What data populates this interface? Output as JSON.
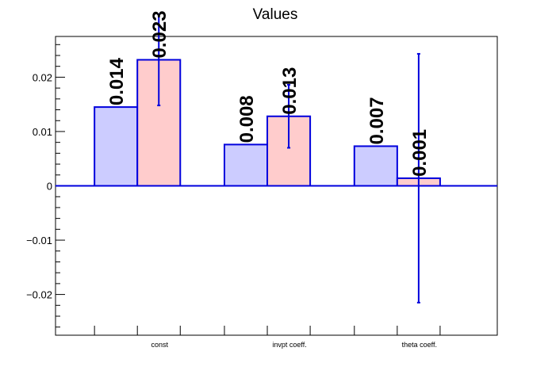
{
  "chart_data": {
    "type": "bar",
    "title": "Values",
    "xlabel": "",
    "ylabel": "",
    "categories": [
      "const",
      "invpt coeff.",
      "theta coeff."
    ],
    "ylim": [
      -0.0275,
      0.0275
    ],
    "yticks": [
      {
        "value": 0.02,
        "label": "0.02"
      },
      {
        "value": 0.01,
        "label": "0.01"
      },
      {
        "value": 0,
        "label": "0"
      },
      {
        "value": -0.01,
        "label": "−0.01"
      },
      {
        "value": -0.02,
        "label": "−0.02"
      }
    ],
    "series": [
      {
        "values": [
          0.0145,
          0.0076,
          0.0073
        ],
        "labels": [
          "0.014",
          "0.008",
          "0.007"
        ],
        "errors": [
          null,
          null,
          null
        ],
        "fill": "#ccccff",
        "stroke": "#0000dd"
      },
      {
        "values": [
          0.0232,
          0.0128,
          0.0014
        ],
        "labels": [
          "0.023",
          "0.013",
          "0.001"
        ],
        "errors": [
          0.0084,
          0.0058,
          0.0229
        ],
        "fill": "#ffcccc",
        "stroke": "#0000dd"
      }
    ],
    "grid": false,
    "legend": "none"
  }
}
